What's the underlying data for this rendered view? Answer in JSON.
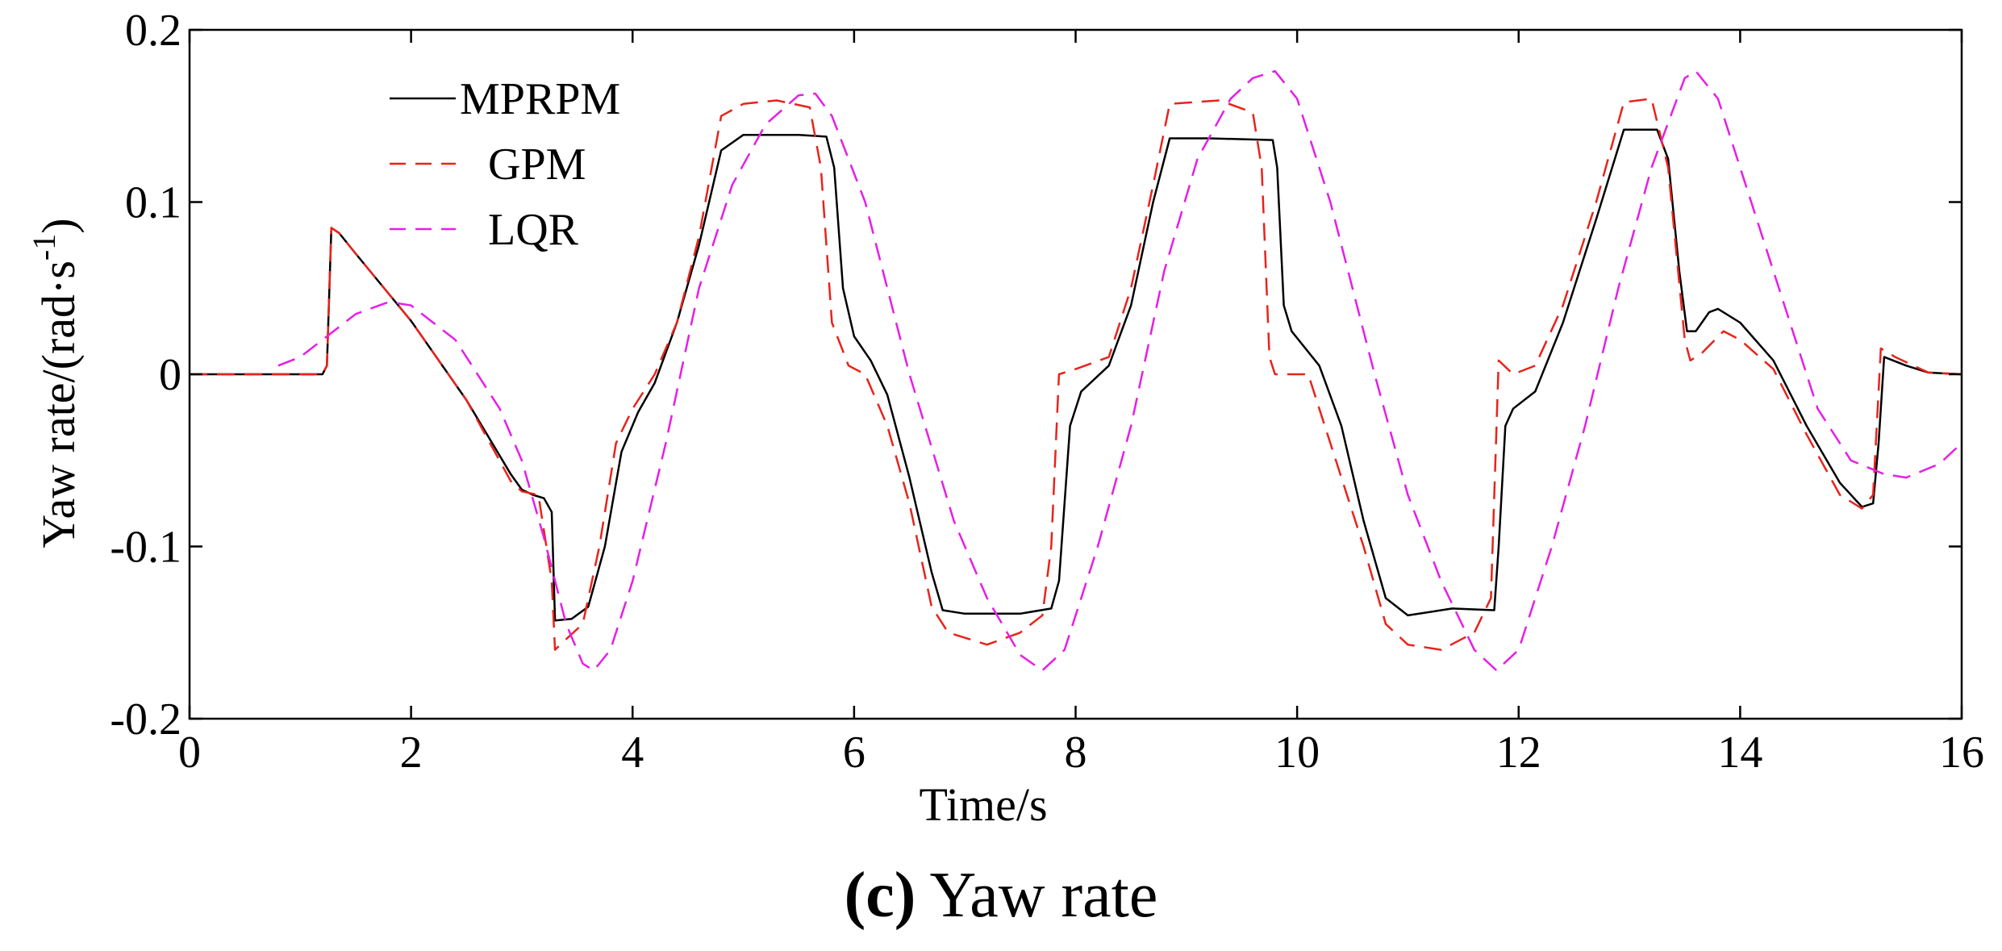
{
  "chart_data": {
    "type": "line",
    "title": "",
    "xlabel": "Time/s",
    "ylabel": "Yaw rate/(rad·s-1)",
    "ylabel_base": "Yaw rate/(rad·s",
    "ylabel_sup": "-1",
    "ylabel_close": ")",
    "xlim": [
      0,
      16
    ],
    "ylim": [
      -0.2,
      0.2
    ],
    "xticks": [
      0,
      2,
      4,
      6,
      8,
      10,
      12,
      14,
      16
    ],
    "xtick_labels": [
      "0",
      "2",
      "4",
      "6",
      "8",
      "10",
      "12",
      "14",
      "16"
    ],
    "yticks": [
      -0.2,
      -0.1,
      0,
      0.1,
      0.2
    ],
    "ytick_labels": [
      "-0.2",
      "-0.1",
      "0",
      "0.1",
      "0.2"
    ],
    "grid": false,
    "legend_position": "top-left",
    "series": [
      {
        "name": "MPRPM",
        "color": "#000000",
        "style": "solid",
        "points": [
          [
            0,
            0
          ],
          [
            1.2,
            0
          ],
          [
            1.24,
            0.005
          ],
          [
            1.28,
            0.085
          ],
          [
            1.35,
            0.082
          ],
          [
            1.5,
            0.07
          ],
          [
            2.0,
            0.031
          ],
          [
            2.5,
            -0.015
          ],
          [
            2.9,
            -0.058
          ],
          [
            3.0,
            -0.067
          ],
          [
            3.1,
            -0.07
          ],
          [
            3.2,
            -0.072
          ],
          [
            3.27,
            -0.08
          ],
          [
            3.3,
            -0.143
          ],
          [
            3.45,
            -0.142
          ],
          [
            3.6,
            -0.135
          ],
          [
            3.75,
            -0.1
          ],
          [
            3.9,
            -0.045
          ],
          [
            4.05,
            -0.022
          ],
          [
            4.2,
            -0.005
          ],
          [
            4.4,
            0.03
          ],
          [
            4.6,
            0.075
          ],
          [
            4.8,
            0.13
          ],
          [
            5.0,
            0.139
          ],
          [
            5.5,
            0.139
          ],
          [
            5.75,
            0.138
          ],
          [
            5.82,
            0.12
          ],
          [
            5.9,
            0.05
          ],
          [
            6.0,
            0.022
          ],
          [
            6.15,
            0.008
          ],
          [
            6.3,
            -0.012
          ],
          [
            6.5,
            -0.06
          ],
          [
            6.7,
            -0.115
          ],
          [
            6.8,
            -0.137
          ],
          [
            7.0,
            -0.139
          ],
          [
            7.5,
            -0.139
          ],
          [
            7.78,
            -0.136
          ],
          [
            7.85,
            -0.12
          ],
          [
            7.95,
            -0.03
          ],
          [
            8.05,
            -0.01
          ],
          [
            8.3,
            0.005
          ],
          [
            8.5,
            0.04
          ],
          [
            8.7,
            0.1
          ],
          [
            8.85,
            0.137
          ],
          [
            9.2,
            0.137
          ],
          [
            9.78,
            0.136
          ],
          [
            9.82,
            0.12
          ],
          [
            9.88,
            0.04
          ],
          [
            9.95,
            0.025
          ],
          [
            10.2,
            0.005
          ],
          [
            10.4,
            -0.03
          ],
          [
            10.6,
            -0.085
          ],
          [
            10.8,
            -0.13
          ],
          [
            11.0,
            -0.14
          ],
          [
            11.4,
            -0.136
          ],
          [
            11.78,
            -0.137
          ],
          [
            11.82,
            -0.1
          ],
          [
            11.88,
            -0.03
          ],
          [
            11.95,
            -0.02
          ],
          [
            12.15,
            -0.01
          ],
          [
            12.4,
            0.03
          ],
          [
            12.7,
            0.09
          ],
          [
            12.95,
            0.142
          ],
          [
            13.25,
            0.142
          ],
          [
            13.35,
            0.125
          ],
          [
            13.45,
            0.06
          ],
          [
            13.52,
            0.025
          ],
          [
            13.6,
            0.025
          ],
          [
            13.72,
            0.036
          ],
          [
            13.8,
            0.038
          ],
          [
            14.0,
            0.03
          ],
          [
            14.3,
            0.008
          ],
          [
            14.6,
            -0.03
          ],
          [
            14.9,
            -0.063
          ],
          [
            15.1,
            -0.077
          ],
          [
            15.2,
            -0.075
          ],
          [
            15.25,
            -0.04
          ],
          [
            15.3,
            0.01
          ],
          [
            15.5,
            0.005
          ],
          [
            15.7,
            0.001
          ],
          [
            16.0,
            0
          ]
        ]
      },
      {
        "name": "GPM",
        "color": "#e8231b",
        "style": "dashed",
        "points": [
          [
            0,
            0
          ],
          [
            1.2,
            0
          ],
          [
            1.24,
            0.005
          ],
          [
            1.28,
            0.085
          ],
          [
            1.35,
            0.082
          ],
          [
            1.5,
            0.07
          ],
          [
            2.0,
            0.031
          ],
          [
            2.5,
            -0.015
          ],
          [
            2.9,
            -0.062
          ],
          [
            3.0,
            -0.068
          ],
          [
            3.15,
            -0.07
          ],
          [
            3.27,
            -0.12
          ],
          [
            3.3,
            -0.16
          ],
          [
            3.38,
            -0.155
          ],
          [
            3.55,
            -0.145
          ],
          [
            3.7,
            -0.1
          ],
          [
            3.85,
            -0.04
          ],
          [
            4.0,
            -0.02
          ],
          [
            4.2,
            0.0
          ],
          [
            4.4,
            0.03
          ],
          [
            4.6,
            0.08
          ],
          [
            4.8,
            0.15
          ],
          [
            5.0,
            0.157
          ],
          [
            5.3,
            0.159
          ],
          [
            5.6,
            0.155
          ],
          [
            5.7,
            0.12
          ],
          [
            5.8,
            0.03
          ],
          [
            5.95,
            0.005
          ],
          [
            6.1,
            0.0
          ],
          [
            6.3,
            -0.03
          ],
          [
            6.5,
            -0.075
          ],
          [
            6.7,
            -0.135
          ],
          [
            6.85,
            -0.15
          ],
          [
            7.2,
            -0.157
          ],
          [
            7.5,
            -0.15
          ],
          [
            7.7,
            -0.14
          ],
          [
            7.78,
            -0.1
          ],
          [
            7.85,
            0.0
          ],
          [
            8.0,
            0.003
          ],
          [
            8.3,
            0.01
          ],
          [
            8.5,
            0.05
          ],
          [
            8.7,
            0.11
          ],
          [
            8.85,
            0.157
          ],
          [
            9.3,
            0.159
          ],
          [
            9.6,
            0.152
          ],
          [
            9.68,
            0.12
          ],
          [
            9.75,
            0.01
          ],
          [
            9.8,
            0.0
          ],
          [
            10.1,
            0.0
          ],
          [
            10.3,
            -0.04
          ],
          [
            10.6,
            -0.1
          ],
          [
            10.8,
            -0.145
          ],
          [
            11.0,
            -0.157
          ],
          [
            11.3,
            -0.16
          ],
          [
            11.6,
            -0.15
          ],
          [
            11.75,
            -0.13
          ],
          [
            11.82,
            0.008
          ],
          [
            11.95,
            0.0
          ],
          [
            12.15,
            0.005
          ],
          [
            12.4,
            0.04
          ],
          [
            12.7,
            0.1
          ],
          [
            12.95,
            0.158
          ],
          [
            13.2,
            0.16
          ],
          [
            13.35,
            0.12
          ],
          [
            13.5,
            0.02
          ],
          [
            13.55,
            0.008
          ],
          [
            13.65,
            0.012
          ],
          [
            13.85,
            0.025
          ],
          [
            14.0,
            0.02
          ],
          [
            14.3,
            0.003
          ],
          [
            14.6,
            -0.035
          ],
          [
            14.9,
            -0.07
          ],
          [
            15.1,
            -0.078
          ],
          [
            15.2,
            -0.07
          ],
          [
            15.27,
            0.015
          ],
          [
            15.4,
            0.01
          ],
          [
            15.7,
            0.001
          ],
          [
            16.0,
            0
          ]
        ]
      },
      {
        "name": "LQR",
        "color": "#e61ee6",
        "style": "dashed",
        "points": [
          [
            0.8,
            0.005
          ],
          [
            1.0,
            0.01
          ],
          [
            1.2,
            0.02
          ],
          [
            1.5,
            0.035
          ],
          [
            1.8,
            0.042
          ],
          [
            2.0,
            0.04
          ],
          [
            2.4,
            0.02
          ],
          [
            2.8,
            -0.02
          ],
          [
            3.0,
            -0.05
          ],
          [
            3.2,
            -0.095
          ],
          [
            3.4,
            -0.145
          ],
          [
            3.55,
            -0.168
          ],
          [
            3.65,
            -0.172
          ],
          [
            3.8,
            -0.16
          ],
          [
            4.0,
            -0.12
          ],
          [
            4.3,
            -0.04
          ],
          [
            4.6,
            0.05
          ],
          [
            4.9,
            0.11
          ],
          [
            5.2,
            0.145
          ],
          [
            5.5,
            0.162
          ],
          [
            5.65,
            0.163
          ],
          [
            5.8,
            0.15
          ],
          [
            6.1,
            0.1
          ],
          [
            6.5,
            0.0
          ],
          [
            6.9,
            -0.085
          ],
          [
            7.2,
            -0.13
          ],
          [
            7.5,
            -0.163
          ],
          [
            7.7,
            -0.172
          ],
          [
            7.9,
            -0.16
          ],
          [
            8.2,
            -0.1
          ],
          [
            8.5,
            -0.03
          ],
          [
            8.8,
            0.06
          ],
          [
            9.1,
            0.125
          ],
          [
            9.4,
            0.16
          ],
          [
            9.6,
            0.172
          ],
          [
            9.8,
            0.176
          ],
          [
            10.0,
            0.16
          ],
          [
            10.3,
            0.1
          ],
          [
            10.7,
            0.0
          ],
          [
            11.0,
            -0.07
          ],
          [
            11.3,
            -0.12
          ],
          [
            11.6,
            -0.16
          ],
          [
            11.8,
            -0.172
          ],
          [
            12.0,
            -0.16
          ],
          [
            12.3,
            -0.1
          ],
          [
            12.6,
            -0.03
          ],
          [
            12.9,
            0.05
          ],
          [
            13.2,
            0.12
          ],
          [
            13.5,
            0.172
          ],
          [
            13.6,
            0.176
          ],
          [
            13.8,
            0.16
          ],
          [
            14.1,
            0.1
          ],
          [
            14.4,
            0.04
          ],
          [
            14.7,
            -0.02
          ],
          [
            15.0,
            -0.05
          ],
          [
            15.3,
            -0.058
          ],
          [
            15.5,
            -0.06
          ],
          [
            15.8,
            -0.052
          ],
          [
            16.0,
            -0.04
          ]
        ]
      }
    ]
  },
  "caption": {
    "label": "(c)",
    "text": " Yaw rate"
  }
}
